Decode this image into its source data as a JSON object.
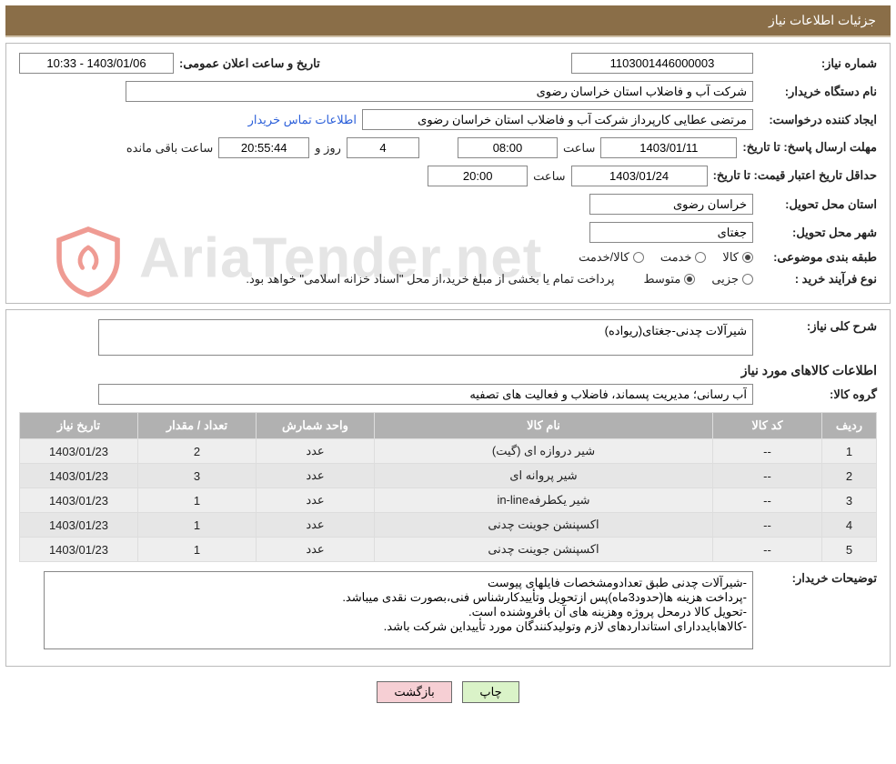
{
  "header": {
    "title": "جزئیات اطلاعات نیاز"
  },
  "fields": {
    "need_no_label": "شماره نیاز:",
    "need_no": "1103001446000003",
    "announce_label": "تاریخ و ساعت اعلان عمومی:",
    "announce_value": "1403/01/06 - 10:33",
    "buyer_label": "نام دستگاه خریدار:",
    "buyer_value": "شرکت آب و فاضلاب استان خراسان رضوی",
    "creator_label": "ایجاد کننده درخواست:",
    "creator_value": "مرتضی عطایی کارپرداز شرکت آب و فاضلاب استان خراسان رضوی",
    "contact_link": "اطلاعات تماس خریدار",
    "reply_label_line": "مهلت ارسال پاسخ: تا تاریخ:",
    "reply_date": "1403/01/11",
    "time_label": "ساعت",
    "reply_time": "08:00",
    "days": "4",
    "days_and": "روز و",
    "countdown": "20:55:44",
    "remaining": "ساعت باقی مانده",
    "valid_label_line": "حداقل تاریخ اعتبار قیمت: تا تاریخ:",
    "valid_date": "1403/01/24",
    "valid_time": "20:00",
    "province_label": "استان محل تحویل:",
    "province_value": "خراسان رضوی",
    "city_label": "شهر محل تحویل:",
    "city_value": "جغتای",
    "category_label": "طبقه بندی موضوعی:",
    "cat_goods": "کالا",
    "cat_service": "خدمت",
    "cat_goods_service": "کالا/خدمت",
    "process_label": "نوع فرآیند خرید :",
    "proc_partial": "جزیی",
    "proc_medium": "متوسط",
    "process_note": "پرداخت تمام یا بخشی از مبلغ خرید،از محل \"اسناد خزانه اسلامی\" خواهد بود.",
    "desc_label": "شرح کلی نیاز:",
    "desc_value": "شیرآلات چدنی-جغتای(ریواده)",
    "goods_info_title": "اطلاعات کالاهای مورد نیاز",
    "group_label": "گروه کالا:",
    "group_value": "آب رسانی؛ مدیریت پسماند، فاضلاب و فعالیت های تصفیه",
    "buyer_notes_label": "توضیحات خریدار:",
    "buyer_notes_value": "-شیرآلات چدنی طبق تعدادومشخصات فایلهای پیوست\n-پرداخت هزینه ها(حدود3ماه)پس ازتحویل وتأییدکارشناس فنی،بصورت نقدی میباشد.\n-تحویل کالا درمحل پروژه وهزینه های آن بافروشنده است.\n-کالاهابایددارای استانداردهای لازم وتولیدکنندگان مورد تأییداین شرکت باشد."
  },
  "table": {
    "headers": {
      "row": "ردیف",
      "code": "کد کالا",
      "name": "نام کالا",
      "unit": "واحد شمارش",
      "qty": "تعداد / مقدار",
      "date": "تاریخ نیاز"
    },
    "rows": [
      {
        "row": "1",
        "code": "--",
        "name": "شیر دروازه ای (گیت)",
        "unit": "عدد",
        "qty": "2",
        "date": "1403/01/23"
      },
      {
        "row": "2",
        "code": "--",
        "name": "شیر پروانه ای",
        "unit": "عدد",
        "qty": "3",
        "date": "1403/01/23"
      },
      {
        "row": "3",
        "code": "--",
        "name": "شیر یکطرفهin-line",
        "unit": "عدد",
        "qty": "1",
        "date": "1403/01/23"
      },
      {
        "row": "4",
        "code": "--",
        "name": "اکسپنشن جوینت چدنی",
        "unit": "عدد",
        "qty": "1",
        "date": "1403/01/23"
      },
      {
        "row": "5",
        "code": "--",
        "name": "اکسپنشن جوینت چدنی",
        "unit": "عدد",
        "qty": "1",
        "date": "1403/01/23"
      }
    ]
  },
  "buttons": {
    "print": "چاپ",
    "back": "بازگشت"
  },
  "watermark": "AriaTender.net",
  "colors": {
    "title_bg": "#8a6e48",
    "title_underline": "#cfc0a8",
    "th_bg": "#b1b1b1",
    "td_bg": "#eeeeee",
    "btn_print": "#daf3c8",
    "btn_back": "#f6cfd4",
    "link": "#2b5fd9",
    "wm_shield": "#e24a3b"
  },
  "col_widths": {
    "row": "60px",
    "code": "120px",
    "name": "auto",
    "unit": "130px",
    "qty": "130px",
    "date": "130px"
  }
}
